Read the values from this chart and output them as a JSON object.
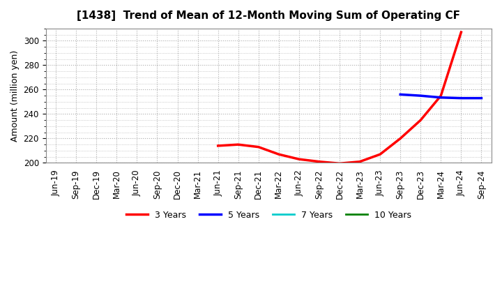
{
  "title": "[1438]  Trend of Mean of 12-Month Moving Sum of Operating CF",
  "ylabel": "Amount (million yen)",
  "ylim": [
    200,
    310
  ],
  "yticks": [
    200,
    220,
    240,
    260,
    280,
    300
  ],
  "background_color": "#ffffff",
  "grid_color": "#aaaaaa",
  "x_labels": [
    "Jun-19",
    "Sep-19",
    "Dec-19",
    "Mar-20",
    "Jun-20",
    "Sep-20",
    "Dec-20",
    "Mar-21",
    "Jun-21",
    "Sep-21",
    "Dec-21",
    "Mar-22",
    "Jun-22",
    "Sep-22",
    "Dec-22",
    "Mar-23",
    "Jun-23",
    "Sep-23",
    "Dec-23",
    "Mar-24",
    "Jun-24",
    "Sep-24"
  ],
  "series": {
    "3 Years": {
      "color": "#ff0000",
      "linewidth": 2.5,
      "data_x": [
        8,
        9,
        10,
        11,
        12,
        13,
        14,
        15,
        16,
        17,
        18,
        19,
        20
      ],
      "data_y": [
        214,
        215,
        213,
        207,
        203,
        201,
        199.5,
        201,
        207,
        220,
        235,
        255,
        307
      ]
    },
    "5 Years": {
      "color": "#0000ff",
      "linewidth": 2.5,
      "data_x": [
        17,
        18,
        19,
        20,
        21
      ],
      "data_y": [
        256,
        255,
        253.5,
        253,
        253
      ]
    },
    "7 Years": {
      "color": "#00cccc",
      "linewidth": 2.0,
      "data_x": [],
      "data_y": []
    },
    "10 Years": {
      "color": "#008000",
      "linewidth": 2.0,
      "data_x": [],
      "data_y": []
    }
  }
}
